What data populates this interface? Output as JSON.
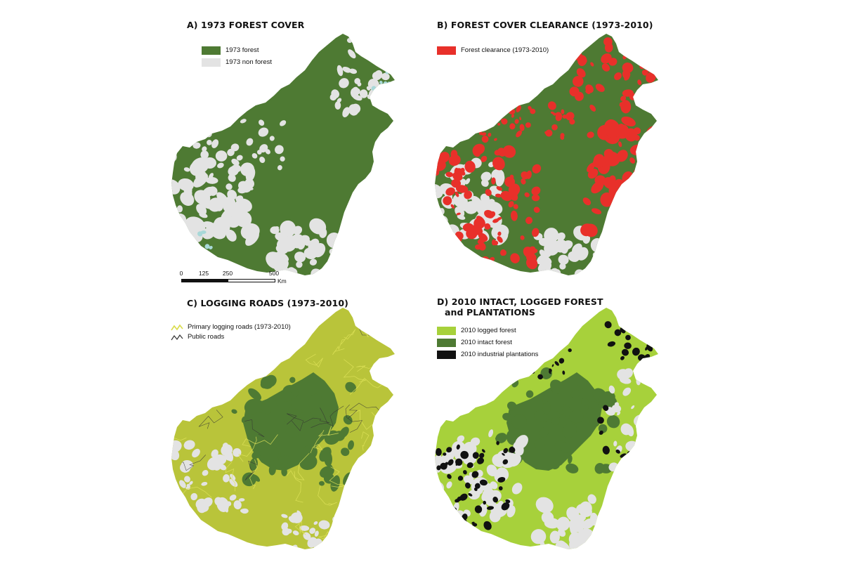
{
  "colors": {
    "forest": "#4e7a33",
    "nonforest": "#e3e3e3",
    "water": "#a8d8d8",
    "clearance": "#e8302a",
    "logged": "#a7d13b",
    "loggedroad": "#b9c43a",
    "plantation": "#111111",
    "primaryroad": "#e0e35a",
    "publicroad": "#333333"
  },
  "panels": [
    {
      "id": "a",
      "title": "A) 1973 FOREST COVER",
      "legend": [
        {
          "label": "1973 forest",
          "color": "#4e7a33",
          "kind": "box"
        },
        {
          "label": "1973 non forest",
          "color": "#e3e3e3",
          "kind": "box"
        }
      ]
    },
    {
      "id": "b",
      "title": "B) FOREST COVER CLEARANCE (1973-2010)",
      "legend": [
        {
          "label": "Forest clearance (1973-2010)",
          "color": "#e8302a",
          "kind": "box"
        }
      ]
    },
    {
      "id": "c",
      "title": "C) LOGGING ROADS (1973-2010)",
      "legend": [
        {
          "label": "Primary logging roads (1973-2010)",
          "color": "#e0e35a",
          "kind": "line"
        },
        {
          "label": "Public roads",
          "color": "#333333",
          "kind": "line"
        }
      ]
    },
    {
      "id": "d",
      "title_line1": "D) 2010 INTACT, LOGGED FOREST",
      "title_line2": "and PLANTATIONS",
      "legend": [
        {
          "label": "2010 logged forest",
          "color": "#a7d13b",
          "kind": "box"
        },
        {
          "label": "2010 intact forest",
          "color": "#4e7a33",
          "kind": "box"
        },
        {
          "label": "2010 industrial plantations",
          "color": "#111111",
          "kind": "box"
        }
      ]
    }
  ],
  "scale": {
    "ticks": [
      "0",
      "125",
      "250",
      "500"
    ],
    "unit": "Km"
  }
}
